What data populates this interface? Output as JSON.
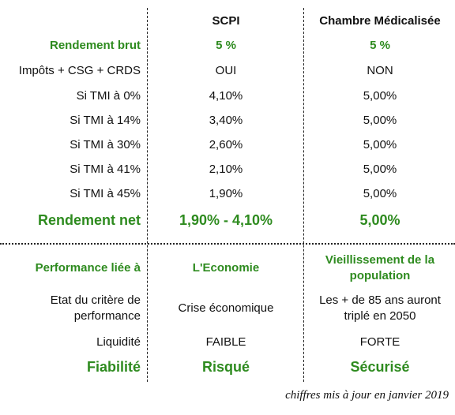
{
  "columns": {
    "scpi": "SCPI",
    "chambre": "Chambre Médicalisée"
  },
  "rows": [
    {
      "label": "Rendement brut",
      "scpi": "5 %",
      "chambre": "5 %"
    },
    {
      "label": "Impôts + CSG + CRDS",
      "scpi": "OUI",
      "chambre": "NON"
    },
    {
      "label": "Si TMI à 0%",
      "scpi": "4,10%",
      "chambre": "5,00%"
    },
    {
      "label": "Si TMI à 14%",
      "scpi": "3,40%",
      "chambre": "5,00%"
    },
    {
      "label": "Si TMI à 30%",
      "scpi": "2,60%",
      "chambre": "5,00%"
    },
    {
      "label": "Si TMI à 41%",
      "scpi": "2,10%",
      "chambre": "5,00%"
    },
    {
      "label": "Si TMI à 45%",
      "scpi": "1,90%",
      "chambre": "5,00%"
    },
    {
      "label": "Rendement net",
      "scpi": "1,90% - 4,10%",
      "chambre": "5,00%"
    }
  ],
  "lower": [
    {
      "label": "Performance liée à",
      "scpi": "L'Economie",
      "chambre": "Vieillissement de la population"
    },
    {
      "label": "Etat du critère de performance",
      "scpi": "Crise économique",
      "chambre": "Les + de 85 ans auront triplé en 2050"
    },
    {
      "label": "Liquidité",
      "scpi": "FAIBLE",
      "chambre": "FORTE"
    },
    {
      "label": "Fiabilité",
      "scpi": "Risqué",
      "chambre": "Sécurisé"
    }
  ],
  "footnote": "chiffres mis à jour en janvier 2019",
  "colors": {
    "accent_green": "#2e8b1f"
  }
}
